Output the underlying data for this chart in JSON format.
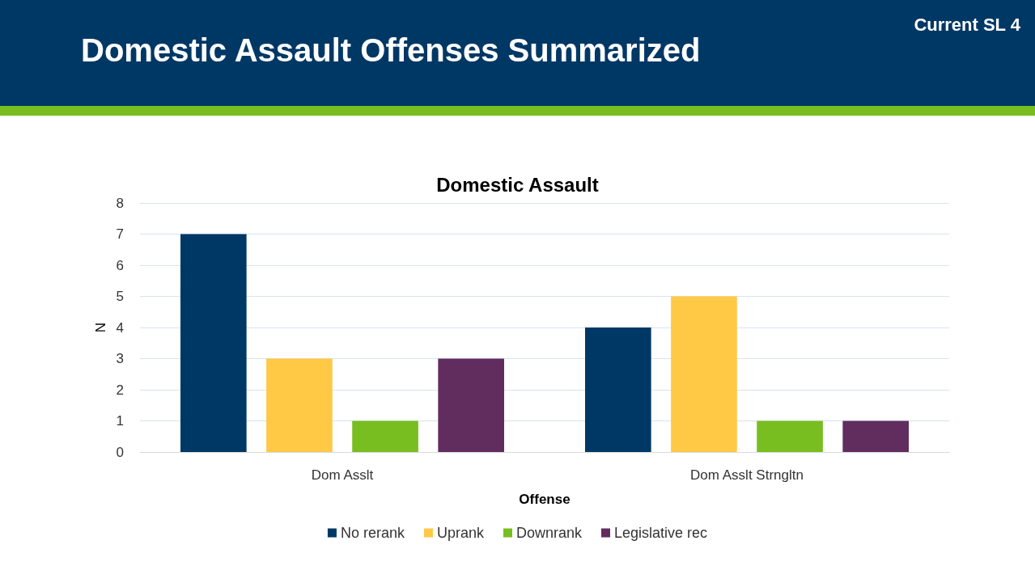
{
  "chart_data": {
    "type": "bar",
    "title": "Domestic Assault Offenses Summarized",
    "subtitle": "Domestic Assault",
    "annotations": [
      "Current SL 4"
    ],
    "xlabel": "Offense",
    "ylabel": "N",
    "categories": [
      "Dom Asslt",
      "Dom Asslt Strngltn"
    ],
    "series": [
      {
        "name": "No rerank",
        "color": "#003865",
        "values": [
          7,
          4
        ]
      },
      {
        "name": "Uprank",
        "color": "#ffc845",
        "values": [
          3,
          5
        ]
      },
      {
        "name": "Downrank",
        "color": "#78be20",
        "values": [
          1,
          1
        ]
      },
      {
        "name": "Legislative rec",
        "color": "#612c5e",
        "values": [
          3,
          1
        ]
      }
    ],
    "ylim": [
      0,
      8
    ],
    "yticks": [
      0,
      1,
      2,
      3,
      4,
      5,
      6,
      7,
      8
    ],
    "grid": "y",
    "legend": "bottom"
  }
}
